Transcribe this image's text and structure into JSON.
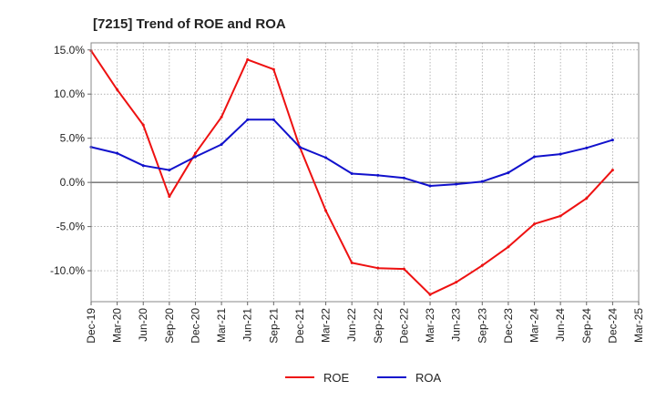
{
  "chart_data": {
    "type": "line",
    "title": "[7215]  Trend of ROE and ROA",
    "xlabel": "",
    "ylabel": "",
    "x": [
      "Dec-19",
      "Mar-20",
      "Jun-20",
      "Sep-20",
      "Dec-20",
      "Mar-21",
      "Jun-21",
      "Sep-21",
      "Dec-21",
      "Mar-22",
      "Jun-22",
      "Sep-22",
      "Dec-22",
      "Mar-23",
      "Jun-23",
      "Sep-23",
      "Dec-23",
      "Mar-24",
      "Jun-24",
      "Sep-24",
      "Dec-24",
      "Mar-25"
    ],
    "ylim": [
      -13.5,
      15.8
    ],
    "yticks": [
      15,
      10,
      5,
      0,
      -5,
      -10
    ],
    "ytick_labels": [
      "15.0%",
      "10.0%",
      "5.0%",
      "0.0%",
      "-5.0%",
      "-10.0%"
    ],
    "grid": true,
    "legend_position": "bottom",
    "series": [
      {
        "name": "ROE",
        "color": "#ee1111",
        "values": [
          14.9,
          10.5,
          6.5,
          -1.6,
          3.3,
          7.4,
          13.9,
          12.8,
          4.0,
          -3.2,
          -9.1,
          -9.7,
          -9.8,
          -12.7,
          -11.3,
          -9.4,
          -7.3,
          -4.7,
          -3.8,
          -1.8,
          1.4,
          null
        ]
      },
      {
        "name": "ROA",
        "color": "#1111cc",
        "values": [
          4.0,
          3.3,
          1.9,
          1.4,
          2.9,
          4.3,
          7.1,
          7.1,
          4.0,
          2.8,
          1.0,
          0.8,
          0.5,
          -0.4,
          -0.2,
          0.1,
          1.1,
          2.9,
          3.2,
          3.9,
          4.8,
          null
        ]
      }
    ]
  }
}
